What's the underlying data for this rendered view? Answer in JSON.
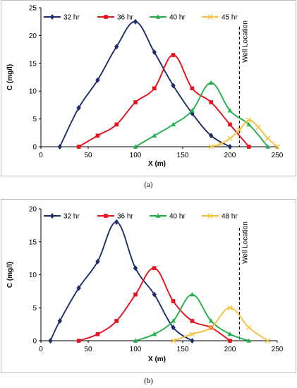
{
  "chart_data": [
    {
      "type": "line",
      "caption": "(a)",
      "xlabel": "X (m)",
      "ylabel": "C (mg/l)",
      "xlim": [
        0,
        250
      ],
      "ylim": [
        0,
        25
      ],
      "xticks": [
        0,
        50,
        100,
        150,
        200,
        250
      ],
      "yticks": [
        0,
        5,
        10,
        15,
        20,
        25
      ],
      "grid": false,
      "legend_placement": "top",
      "annotation": {
        "text": "Well Location",
        "x": 210,
        "style": "dashed-vertical"
      },
      "series": [
        {
          "name": "32 hr",
          "color": "#1f2d6b",
          "marker": "diamond",
          "x": [
            20,
            40,
            60,
            80,
            100,
            120,
            140,
            160,
            180,
            200
          ],
          "y": [
            0,
            7,
            12,
            18,
            22.5,
            17,
            11,
            6,
            2,
            0
          ]
        },
        {
          "name": "36 hr",
          "color": "#e8101c",
          "marker": "square",
          "x": [
            40,
            60,
            80,
            100,
            120,
            140,
            160,
            180,
            200,
            220
          ],
          "y": [
            0,
            2,
            4,
            8,
            10.5,
            16.5,
            10.5,
            8,
            4,
            0
          ]
        },
        {
          "name": "40 hr",
          "color": "#22b14c",
          "marker": "triangle",
          "x": [
            100,
            120,
            140,
            160,
            180,
            200,
            220,
            240
          ],
          "y": [
            0,
            2,
            4,
            6.5,
            11.5,
            6.5,
            4,
            0
          ]
        },
        {
          "name": "45 hr",
          "color": "#f5c242",
          "marker": "x",
          "x": [
            180,
            190,
            200,
            210,
            220,
            230,
            240,
            250
          ],
          "y": [
            0,
            0.5,
            1.5,
            3,
            4.8,
            3.5,
            1.5,
            0
          ]
        }
      ]
    },
    {
      "type": "line",
      "caption": "(b)",
      "xlabel": "X (m)",
      "ylabel": "C (mg/l)",
      "xlim": [
        0,
        250
      ],
      "ylim": [
        0,
        20
      ],
      "xticks": [
        0,
        50,
        100,
        150,
        200,
        250
      ],
      "yticks": [
        0,
        5,
        10,
        15,
        20
      ],
      "grid": false,
      "legend_placement": "top",
      "annotation": {
        "text": "Well Location",
        "x": 210,
        "style": "dashed-vertical"
      },
      "series": [
        {
          "name": "32 hr",
          "color": "#1f2d6b",
          "marker": "diamond",
          "x": [
            10,
            20,
            40,
            60,
            80,
            100,
            120,
            140,
            160
          ],
          "y": [
            0,
            3,
            8,
            12,
            18,
            11,
            7,
            2,
            0
          ]
        },
        {
          "name": "36 hr",
          "color": "#e8101c",
          "marker": "square",
          "x": [
            40,
            60,
            80,
            100,
            120,
            140,
            160,
            180,
            200
          ],
          "y": [
            0,
            1,
            3,
            7,
            11,
            6,
            3,
            2,
            0
          ]
        },
        {
          "name": "40 hr",
          "color": "#22b14c",
          "marker": "triangle",
          "x": [
            100,
            120,
            140,
            160,
            180,
            200,
            220
          ],
          "y": [
            0,
            1,
            3,
            7,
            3,
            1,
            0
          ]
        },
        {
          "name": "48 hr",
          "color": "#f5c242",
          "marker": "x",
          "x": [
            140,
            160,
            180,
            200,
            220,
            240
          ],
          "y": [
            0,
            1,
            2,
            5,
            2,
            0
          ]
        }
      ]
    }
  ]
}
